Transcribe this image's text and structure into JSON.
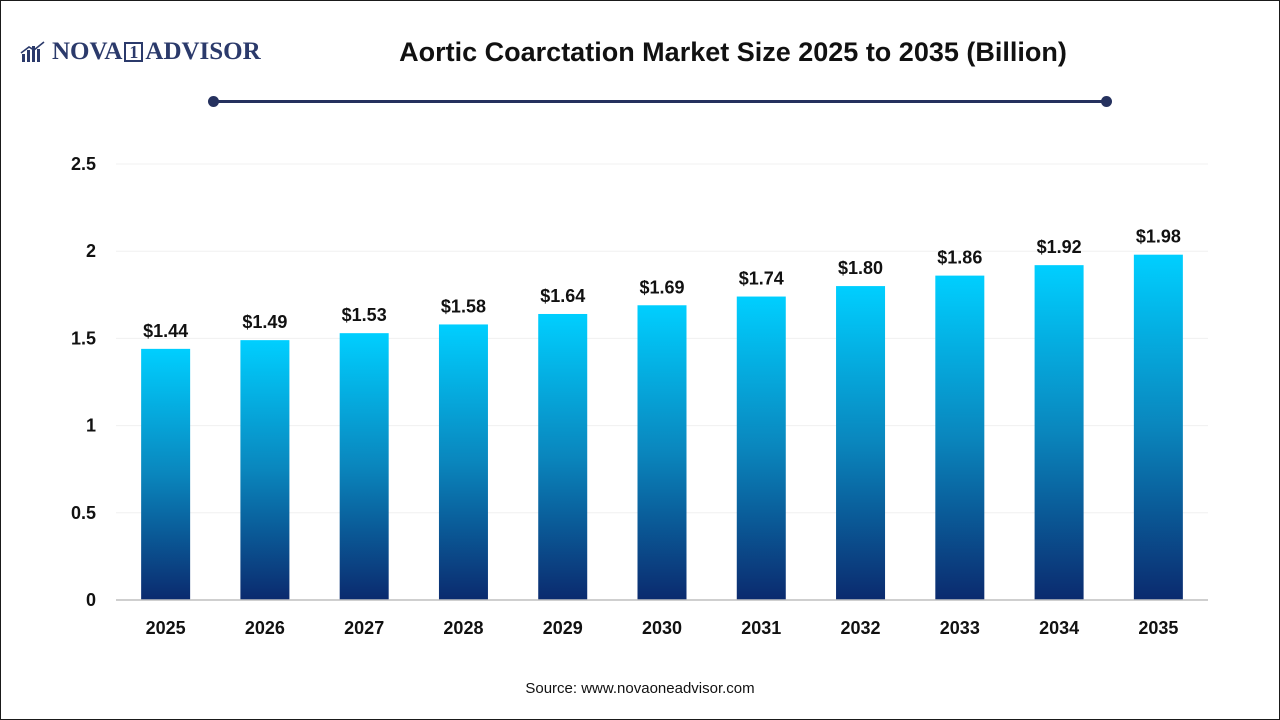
{
  "brand": {
    "logo_text_left": "NOVA",
    "logo_text_box": "1",
    "logo_text_right": "ADVISOR",
    "logo_icon": "bar-chart-logo-icon",
    "color": "#2b3a6b"
  },
  "source_text": "Source: www.novaoneadvisor.com",
  "colors": {
    "bar_top": "#00cfff",
    "bar_mid": "#0a7fb8",
    "bar_bottom": "#0b2a6e",
    "decor_line": "#25315e",
    "axis": "#bfbfbf",
    "grid": "#f0f0f0"
  },
  "chart_data": {
    "type": "bar",
    "title": "Aortic Coarctation Market Size 2025 to 2035 (Billion)",
    "xlabel": "",
    "ylabel": "",
    "categories": [
      "2025",
      "2026",
      "2027",
      "2028",
      "2029",
      "2030",
      "2031",
      "2032",
      "2033",
      "2034",
      "2035"
    ],
    "values": [
      1.44,
      1.49,
      1.53,
      1.58,
      1.64,
      1.69,
      1.74,
      1.8,
      1.86,
      1.92,
      1.98
    ],
    "data_labels": [
      "$1.44",
      "$1.49",
      "$1.53",
      "$1.58",
      "$1.64",
      "$1.69",
      "$1.74",
      "$1.80",
      "$1.86",
      "$1.92",
      "$1.98"
    ],
    "ylim": [
      0,
      2.5
    ],
    "yticks": [
      0,
      0.5,
      1,
      1.5,
      2,
      2.5
    ],
    "ytick_labels": [
      "0",
      "0.5",
      "1",
      "1.5",
      "2",
      "2.5"
    ],
    "grid": true,
    "legend": "none"
  }
}
